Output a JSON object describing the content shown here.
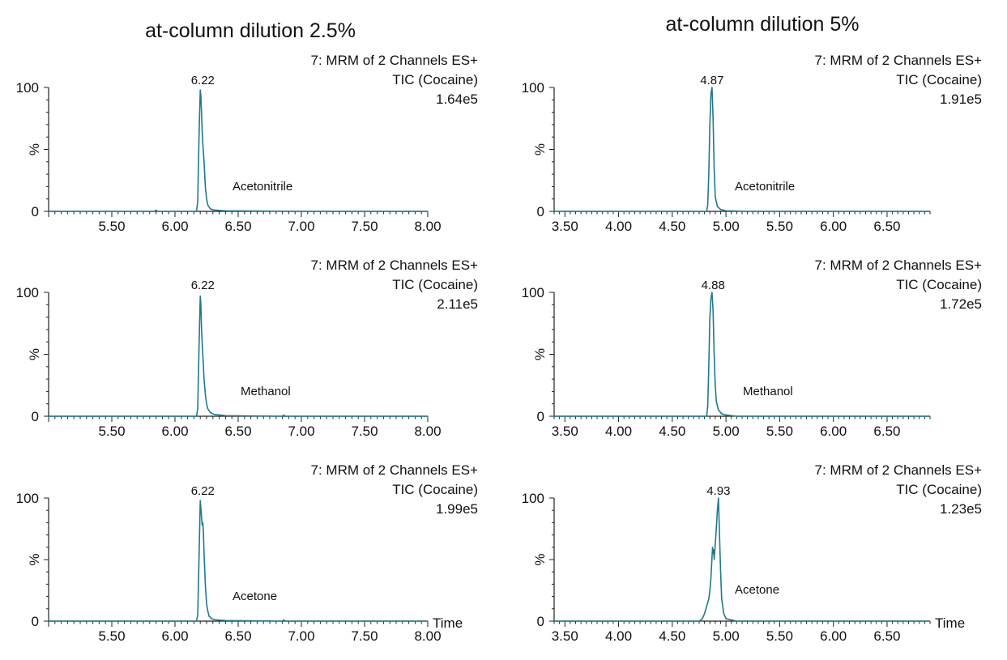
{
  "colors": {
    "trace": "#1f7a8c",
    "axis": "#222222",
    "text": "#111111"
  },
  "column_titles": [
    "at-column dilution 2.5%",
    "at-column dilution 5%"
  ],
  "common": {
    "y_ticks": [
      "100",
      "%",
      "0"
    ],
    "time_label": "Time"
  },
  "chart_data": [
    {
      "type": "line",
      "column": 0,
      "row": 0,
      "header": [
        "7: MRM of 2 Channels ES+",
        "TIC (Cocaine)",
        "1.64e5"
      ],
      "solvent": "Acetonitrile",
      "peak_label": "6.22",
      "peak_rt": 6.22,
      "xlim": [
        5.0,
        8.0
      ],
      "ylim": [
        0,
        100
      ],
      "xticks": [
        "5.50",
        "6.00",
        "6.50",
        "7.00",
        "7.50",
        "8.00"
      ],
      "tick_values": [
        5.5,
        6.0,
        6.5,
        7.0,
        7.5,
        8.0
      ],
      "show_time_label": false,
      "x": [
        5.0,
        5.6,
        5.84,
        5.85,
        5.86,
        6.0,
        6.17,
        6.18,
        6.19,
        6.2,
        6.205,
        6.21,
        6.215,
        6.22,
        6.225,
        6.23,
        6.24,
        6.25,
        6.26,
        6.28,
        6.31,
        6.4,
        7.0,
        8.0
      ],
      "y": [
        0,
        0,
        0,
        1,
        0,
        0,
        0,
        8,
        60,
        98,
        93,
        80,
        65,
        55,
        48,
        40,
        20,
        10,
        5,
        2,
        1,
        0.5,
        0,
        0
      ]
    },
    {
      "type": "line",
      "column": 1,
      "row": 0,
      "header": [
        "7: MRM of 2 Channels ES+",
        "TIC (Cocaine)",
        "1.91e5"
      ],
      "solvent": "Acetonitrile",
      "peak_label": "4.87",
      "peak_rt": 4.87,
      "xlim": [
        3.4,
        6.9
      ],
      "ylim": [
        0,
        100
      ],
      "xticks": [
        "3.50",
        "4.00",
        "4.50",
        "5.00",
        "5.50",
        "6.00",
        "6.50"
      ],
      "tick_values": [
        3.5,
        4.0,
        4.5,
        5.0,
        5.5,
        6.0,
        6.5
      ],
      "show_time_label": false,
      "x": [
        3.4,
        4.8,
        4.82,
        4.83,
        4.84,
        4.85,
        4.86,
        4.87,
        4.88,
        4.89,
        4.9,
        4.92,
        4.95,
        5.0,
        5.2,
        6.9
      ],
      "y": [
        0,
        0,
        0,
        5,
        30,
        70,
        95,
        100,
        75,
        35,
        12,
        4,
        1.5,
        0.5,
        0,
        0
      ]
    },
    {
      "type": "line",
      "column": 0,
      "row": 1,
      "header": [
        "7: MRM of 2 Channels ES+",
        "TIC (Cocaine)",
        "2.11e5"
      ],
      "solvent": "Methanol",
      "peak_label": "6.22",
      "peak_rt": 6.22,
      "xlim": [
        5.0,
        8.0
      ],
      "ylim": [
        0,
        100
      ],
      "xticks": [
        "5.50",
        "6.00",
        "6.50",
        "7.00",
        "7.50",
        "8.00"
      ],
      "tick_values": [
        5.5,
        6.0,
        6.5,
        7.0,
        7.5,
        8.0
      ],
      "show_time_label": false,
      "x": [
        5.0,
        6.17,
        6.18,
        6.19,
        6.2,
        6.205,
        6.21,
        6.22,
        6.23,
        6.24,
        6.25,
        6.26,
        6.28,
        6.31,
        6.4,
        6.85,
        6.86,
        6.87,
        7.0,
        8.0
      ],
      "y": [
        0,
        0,
        6,
        55,
        97,
        90,
        70,
        50,
        30,
        18,
        10,
        6,
        3,
        1.5,
        0.5,
        0,
        1,
        0,
        0,
        0
      ]
    },
    {
      "type": "line",
      "column": 1,
      "row": 1,
      "header": [
        "7: MRM of 2 Channels ES+",
        "TIC (Cocaine)",
        "1.72e5"
      ],
      "solvent": "Methanol",
      "peak_label": "4.88",
      "peak_rt": 4.88,
      "xlim": [
        3.4,
        6.9
      ],
      "ylim": [
        0,
        100
      ],
      "xticks": [
        "3.50",
        "4.00",
        "4.50",
        "5.00",
        "5.50",
        "6.00",
        "6.50"
      ],
      "tick_values": [
        3.5,
        4.0,
        4.5,
        5.0,
        5.5,
        6.0,
        6.5
      ],
      "show_time_label": false,
      "x": [
        3.4,
        4.8,
        4.82,
        4.83,
        4.84,
        4.85,
        4.86,
        4.87,
        4.88,
        4.89,
        4.9,
        4.91,
        4.93,
        4.96,
        5.0,
        5.1,
        6.9
      ],
      "y": [
        0,
        0,
        0,
        8,
        40,
        80,
        95,
        100,
        85,
        50,
        25,
        12,
        5,
        2,
        1,
        0,
        0
      ]
    },
    {
      "type": "line",
      "column": 0,
      "row": 2,
      "header": [
        "7: MRM of 2 Channels ES+",
        "TIC (Cocaine)",
        "1.99e5"
      ],
      "solvent": "Acetone",
      "peak_label": "6.22",
      "peak_rt": 6.22,
      "xlim": [
        5.0,
        8.0
      ],
      "ylim": [
        0,
        100
      ],
      "xticks": [
        "5.50",
        "6.00",
        "6.50",
        "7.00",
        "7.50",
        "8.00"
      ],
      "tick_values": [
        5.5,
        6.0,
        6.5,
        7.0,
        7.5,
        8.0
      ],
      "show_time_label": true,
      "x": [
        5.0,
        6.17,
        6.18,
        6.19,
        6.2,
        6.21,
        6.215,
        6.22,
        6.225,
        6.23,
        6.24,
        6.25,
        6.26,
        6.27,
        6.29,
        6.32,
        6.4,
        6.85,
        6.86,
        6.87,
        8.0
      ],
      "y": [
        0,
        0,
        5,
        50,
        98,
        85,
        78,
        80,
        72,
        55,
        30,
        14,
        8,
        4,
        2,
        1,
        0.5,
        0,
        1,
        0,
        0
      ]
    },
    {
      "type": "line",
      "column": 1,
      "row": 2,
      "header": [
        "7: MRM of 2 Channels ES+",
        "TIC (Cocaine)",
        "1.23e5"
      ],
      "solvent": "Acetone",
      "peak_label": "4.93",
      "peak_rt": 4.93,
      "xlim": [
        3.4,
        6.9
      ],
      "ylim": [
        0,
        100
      ],
      "xticks": [
        "3.50",
        "4.00",
        "4.50",
        "5.00",
        "5.50",
        "6.00",
        "6.50"
      ],
      "tick_values": [
        3.5,
        4.0,
        4.5,
        5.0,
        5.5,
        6.0,
        6.5
      ],
      "show_time_label": true,
      "x": [
        3.4,
        4.75,
        4.78,
        4.8,
        4.82,
        4.84,
        4.85,
        4.86,
        4.87,
        4.875,
        4.88,
        4.885,
        4.89,
        4.9,
        4.91,
        4.92,
        4.93,
        4.94,
        4.95,
        4.96,
        4.98,
        5.0,
        5.1,
        6.9
      ],
      "y": [
        0,
        0,
        2,
        6,
        12,
        18,
        25,
        35,
        52,
        60,
        55,
        58,
        50,
        62,
        75,
        90,
        100,
        70,
        40,
        18,
        6,
        2,
        0,
        0
      ]
    }
  ]
}
